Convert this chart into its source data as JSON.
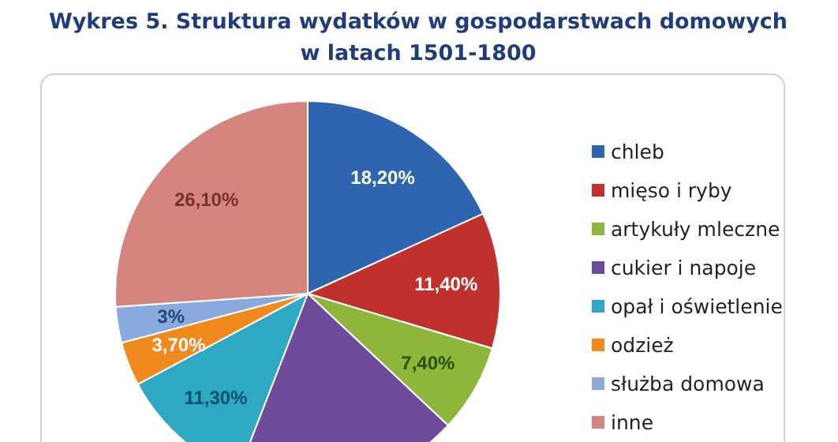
{
  "chart_data": {
    "type": "pie",
    "title": "Wykres 5. Struktura wydatków w gospodarstwach domowych w latach 1501-1800",
    "categories": [
      "chleb",
      "mięso i ryby",
      "artykuły mleczne",
      "cukier i napoje",
      "opał i oświetlenie",
      "odzież",
      "służba domowa",
      "inne"
    ],
    "values": [
      18.2,
      11.4,
      7.4,
      18.9,
      11.3,
      3.7,
      3,
      26.1
    ],
    "colors": [
      "#2e64b0",
      "#c0312d",
      "#8db63b",
      "#6e4a9a",
      "#2fa8c4",
      "#f08a1d",
      "#8aa9dd",
      "#d58480"
    ],
    "value_labels": [
      "18,20%",
      "11,40%",
      "7,40%",
      null,
      "11,30%",
      "3,70%",
      "3%",
      "26,10%"
    ],
    "legend": "right"
  }
}
